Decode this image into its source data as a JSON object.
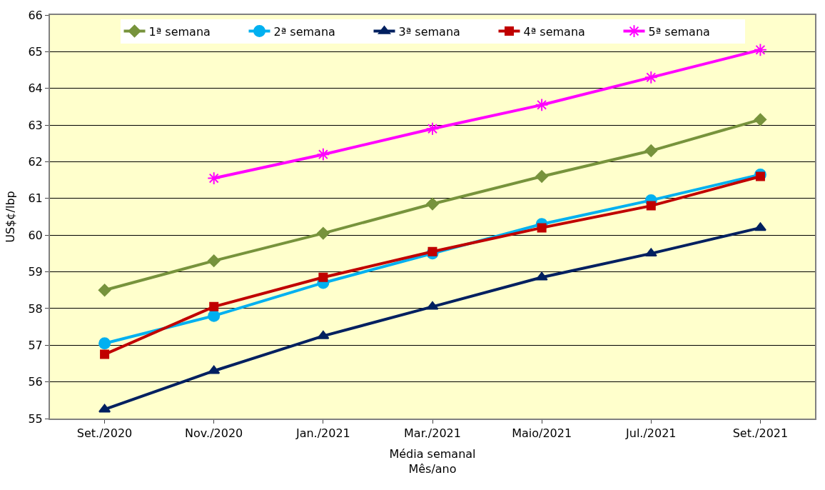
{
  "chart_data": {
    "type": "line",
    "xlabel": "Média semanal\nMês/ano",
    "ylabel": "US$¢/lbp",
    "categories": [
      "Set./2020",
      "Nov./2020",
      "Jan./2021",
      "Mar./2021",
      "Maio/2021",
      "Jul./2021",
      "Set./2021"
    ],
    "series": [
      {
        "name": "1ª semana",
        "color": "#77933c",
        "marker": "diamond",
        "values": [
          58.5,
          59.3,
          60.05,
          60.85,
          61.6,
          62.3,
          63.15
        ]
      },
      {
        "name": "2ª semana",
        "color": "#00b0f0",
        "marker": "circle",
        "values": [
          57.05,
          57.8,
          58.7,
          59.5,
          60.3,
          60.95,
          61.65
        ]
      },
      {
        "name": "3ª semana",
        "color": "#002060",
        "marker": "triangle",
        "values": [
          55.25,
          56.3,
          57.25,
          58.05,
          58.85,
          59.5,
          60.2
        ]
      },
      {
        "name": "4ª semana",
        "color": "#c00000",
        "marker": "square",
        "values": [
          56.75,
          58.05,
          58.85,
          59.55,
          60.2,
          60.8,
          61.6
        ]
      },
      {
        "name": "5ª semana",
        "color": "#ff00ff",
        "marker": "cross",
        "values": [
          null,
          61.55,
          62.2,
          62.9,
          63.55,
          64.3,
          65.05
        ]
      }
    ],
    "ylim": [
      55,
      66
    ],
    "yticks": [
      55,
      56,
      57,
      58,
      59,
      60,
      61,
      62,
      63,
      64,
      65,
      66
    ],
    "grid": "y",
    "legend": "top",
    "line_style": "solid"
  }
}
